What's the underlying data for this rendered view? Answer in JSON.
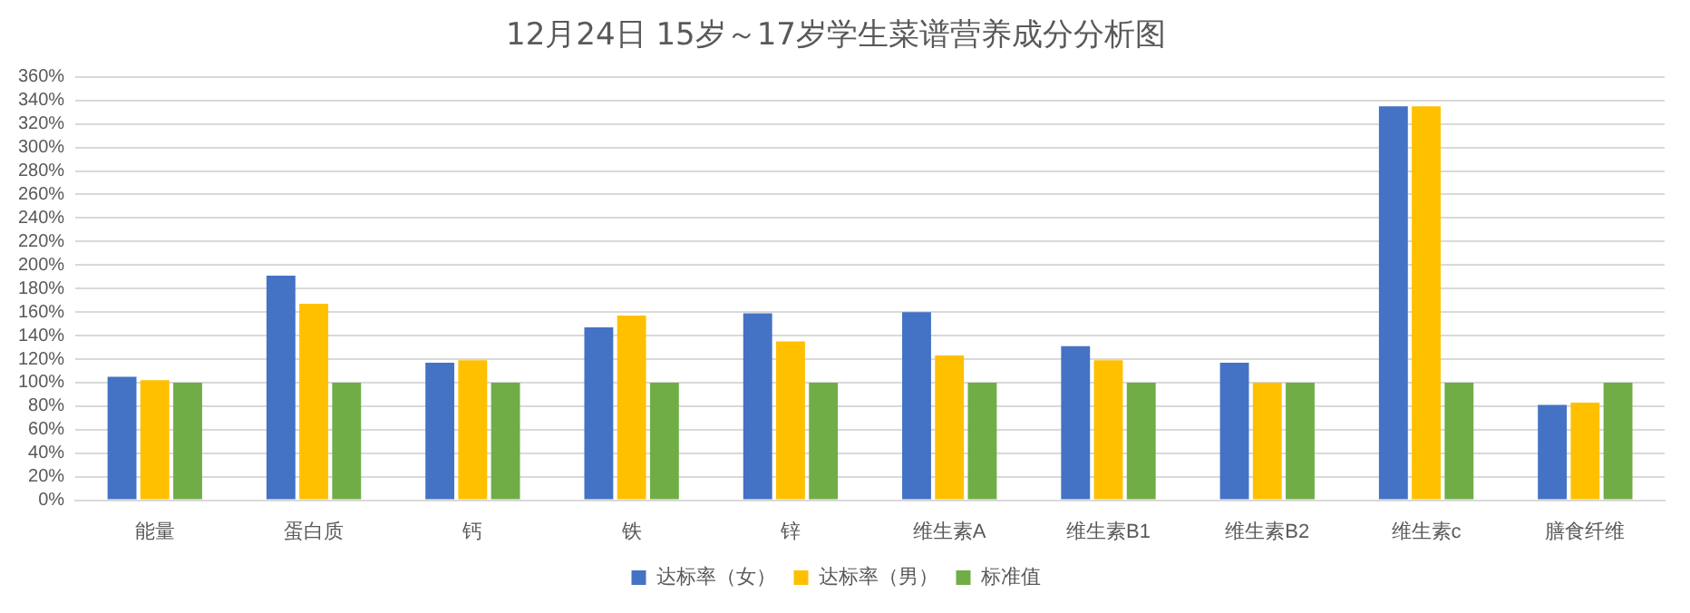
{
  "chart_data": {
    "type": "bar",
    "title": "12月24日 15岁～17岁学生菜谱营养成分分析图",
    "categories": [
      "能量",
      "蛋白质",
      "钙",
      "铁",
      "锌",
      "维生素A",
      "维生素B1",
      "维生素B2",
      "维生素c",
      "膳食纤维"
    ],
    "series": [
      {
        "name": "达标率（女）",
        "color": "#4472c4",
        "values": [
          105,
          191,
          117,
          147,
          159,
          160,
          131,
          117,
          335,
          81
        ]
      },
      {
        "name": "达标率（男）",
        "color": "#ffc000",
        "values": [
          102,
          167,
          119,
          157,
          135,
          123,
          119,
          100,
          335,
          83
        ]
      },
      {
        "name": "标准值",
        "color": "#70ad47",
        "values": [
          100,
          100,
          100,
          100,
          100,
          100,
          100,
          100,
          100,
          100
        ]
      }
    ],
    "ylim": [
      0,
      360
    ],
    "yticks": [
      {
        "value": 0,
        "label": "0%"
      },
      {
        "value": 20,
        "label": "20%"
      },
      {
        "value": 40,
        "label": "40%"
      },
      {
        "value": 60,
        "label": "60%"
      },
      {
        "value": 80,
        "label": "80%"
      },
      {
        "value": 100,
        "label": "100%"
      },
      {
        "value": 120,
        "label": "120%"
      },
      {
        "value": 140,
        "label": "140%"
      },
      {
        "value": 160,
        "label": "160%"
      },
      {
        "value": 180,
        "label": "180%"
      },
      {
        "value": 200,
        "label": "200%"
      },
      {
        "value": 220,
        "label": "220%"
      },
      {
        "value": 240,
        "label": "240%"
      },
      {
        "value": 260,
        "label": "260%"
      },
      {
        "value": 280,
        "label": "280%"
      },
      {
        "value": 300,
        "label": "300%"
      },
      {
        "value": 320,
        "label": "320%"
      },
      {
        "value": 340,
        "label": "340%"
      },
      {
        "value": 360,
        "label": "360%"
      }
    ],
    "grid": "y",
    "legend": "bottom"
  }
}
